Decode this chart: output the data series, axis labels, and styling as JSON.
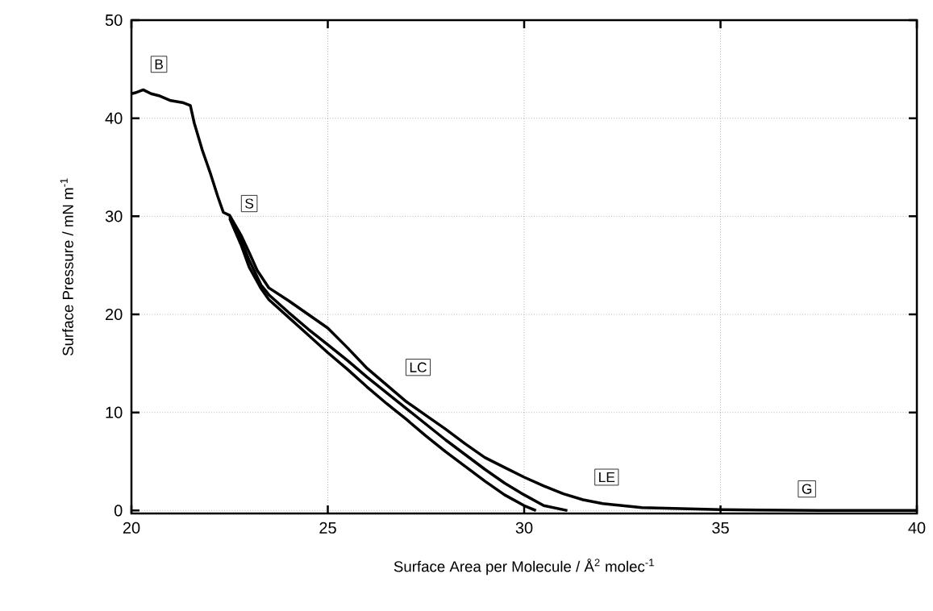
{
  "chart_data": {
    "type": "line",
    "xlabel": "Surface Area per Molecule / Å$^{2}$ molec$^{-1}$",
    "ylabel": "Surface Pressure / mN m$^{-1}$",
    "xlim": [
      20,
      40
    ],
    "ylim": [
      -0.3,
      50
    ],
    "xticks": [
      20,
      25,
      30,
      35,
      40
    ],
    "yticks": [
      0,
      10,
      20,
      30,
      40,
      50
    ],
    "grid": true,
    "series": [
      {
        "color": "#000000",
        "x": [
          40,
          38,
          36,
          35,
          34,
          33,
          32.5,
          32,
          31.5,
          31,
          30.5,
          30,
          29.5,
          29,
          28.5,
          28,
          27.5,
          27,
          26.5,
          26,
          25.5,
          25,
          24.5,
          24,
          23.5,
          23.2,
          23,
          22.8,
          22.5,
          22.34,
          22.2,
          22,
          21.8,
          21.6,
          21.5,
          21.3,
          21,
          20.7,
          20.5,
          20.3,
          20.1,
          20
        ],
        "values": [
          0,
          0,
          0.05,
          0.1,
          0.2,
          0.3,
          0.5,
          0.7,
          1.1,
          1.7,
          2.5,
          3.4,
          4.4,
          5.4,
          6.8,
          8.3,
          9.7,
          11.1,
          12.8,
          14.5,
          16.6,
          18.6,
          20,
          21.4,
          22.7,
          24.5,
          26.3,
          28,
          30.1,
          30.4,
          32,
          34.5,
          36.8,
          39.5,
          41.3,
          41.6,
          41.8,
          42.3,
          42.5,
          42.9,
          42.6,
          42.5
        ]
      },
      {
        "color": "#000000",
        "x": [
          31.1,
          30.5,
          30,
          29.5,
          29,
          28.5,
          28,
          27.5,
          27,
          26.5,
          26,
          25.5,
          25,
          24.5,
          24,
          23.5,
          23.3,
          23,
          22.8,
          22.5
        ],
        "values": [
          0,
          0.5,
          1.6,
          2.8,
          4.2,
          5.7,
          7.2,
          8.8,
          10.4,
          12,
          13.6,
          15.3,
          16.9,
          18.5,
          20.2,
          22,
          23,
          25.5,
          27.5,
          30
        ]
      },
      {
        "color": "#000000",
        "x": [
          30.3,
          30,
          29.5,
          29,
          28.5,
          28,
          27.5,
          27,
          26.5,
          26,
          25.5,
          25,
          24.5,
          24,
          23.5,
          23.29,
          23,
          22.8,
          22.5
        ],
        "values": [
          0,
          0.5,
          1.6,
          3,
          4.5,
          6,
          7.6,
          9.3,
          10.9,
          12.6,
          14.4,
          16.1,
          17.9,
          19.7,
          21.5,
          22.7,
          24.8,
          27,
          29.8
        ]
      }
    ],
    "annotations": [
      {
        "text": "B",
        "x": 20.7,
        "y": 45.5
      },
      {
        "text": "S",
        "x": 23,
        "y": 31.3
      },
      {
        "text": "LC",
        "x": 27.3,
        "y": 14.6
      },
      {
        "text": "LE",
        "x": 32.1,
        "y": 3.4
      },
      {
        "text": "G",
        "x": 37.2,
        "y": 2.2
      }
    ]
  }
}
